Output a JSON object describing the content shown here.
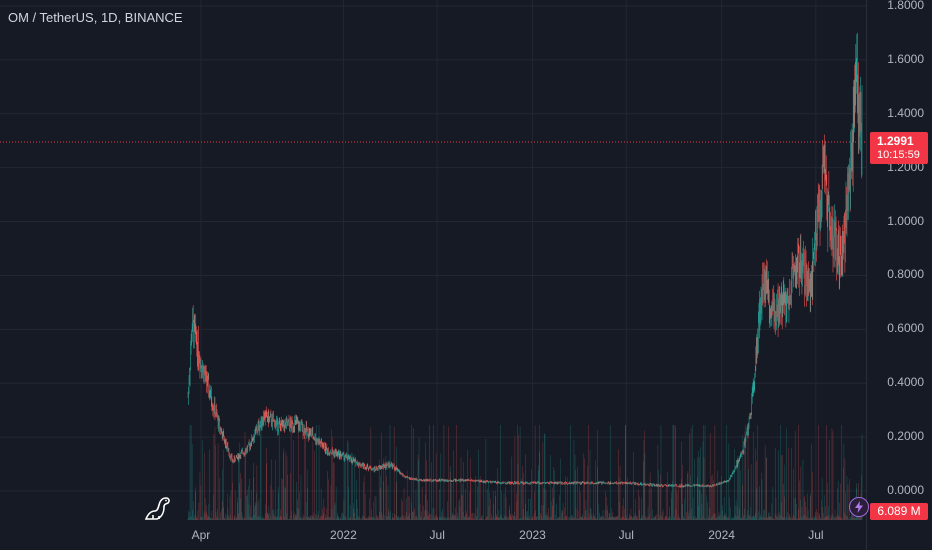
{
  "header": {
    "symbol_title": "OM / TetherUS, 1D, BINANCE"
  },
  "price_tag": {
    "price": "1.2991",
    "countdown": "10:15:59",
    "color": "#f23645"
  },
  "volume_tag": {
    "value": "6.089 M"
  },
  "colors": {
    "up": "#26a69a",
    "down": "#ef5350",
    "background": "#161a25",
    "grid": "#232733"
  },
  "icons": {
    "logo": "tradingview-dino-icon",
    "alert": "lightning-bolt-icon"
  },
  "chart_data": {
    "type": "candlestick",
    "title": "OM / TetherUS, 1D, BINANCE",
    "y_ticks": [
      "1.8000",
      "1.6000",
      "1.4000",
      "1.2000",
      "1.0000",
      "0.8000",
      "0.6000",
      "0.4000",
      "0.2000",
      "0.0000"
    ],
    "x_ticks": [
      "Apr",
      "2022",
      "Jul",
      "2023",
      "Jul",
      "2024",
      "Jul"
    ],
    "ylim": [
      0,
      1.8
    ],
    "current_price": 1.2991,
    "grid": true,
    "series": [
      {
        "name": "price",
        "x": [
          "2021-03-07",
          "2021-03-15",
          "2021-04-01",
          "2021-04-20",
          "2021-05-10",
          "2021-06-01",
          "2021-07-01",
          "2021-08-01",
          "2021-09-01",
          "2021-10-01",
          "2021-11-01",
          "2021-12-01",
          "2022-01-01",
          "2022-02-01",
          "2022-03-01",
          "2022-04-01",
          "2022-05-01",
          "2022-06-01",
          "2022-07-01",
          "2022-09-01",
          "2022-11-01",
          "2023-01-01",
          "2023-03-01",
          "2023-05-01",
          "2023-07-01",
          "2023-09-01",
          "2023-11-01",
          "2023-12-15",
          "2024-01-15",
          "2024-02-10",
          "2024-02-25",
          "2024-03-05",
          "2024-03-20",
          "2024-04-01",
          "2024-04-20",
          "2024-05-10",
          "2024-06-01",
          "2024-06-20",
          "2024-07-01",
          "2024-07-15",
          "2024-07-25",
          "2024-08-05",
          "2024-08-20",
          "2024-09-01",
          "2024-09-10",
          "2024-09-18",
          "2024-09-25",
          "2024-09-28"
        ],
        "y": [
          0.35,
          0.62,
          0.48,
          0.35,
          0.22,
          0.11,
          0.16,
          0.28,
          0.24,
          0.25,
          0.21,
          0.15,
          0.13,
          0.1,
          0.08,
          0.1,
          0.05,
          0.04,
          0.04,
          0.04,
          0.03,
          0.03,
          0.03,
          0.03,
          0.03,
          0.02,
          0.02,
          0.02,
          0.04,
          0.14,
          0.27,
          0.45,
          0.8,
          0.7,
          0.68,
          0.74,
          0.86,
          0.72,
          0.95,
          1.18,
          1.05,
          0.92,
          0.86,
          1.1,
          1.25,
          1.52,
          1.38,
          1.3
        ]
      }
    ],
    "annotations": {
      "peak_high": 0.89,
      "late_high": 1.63
    }
  }
}
